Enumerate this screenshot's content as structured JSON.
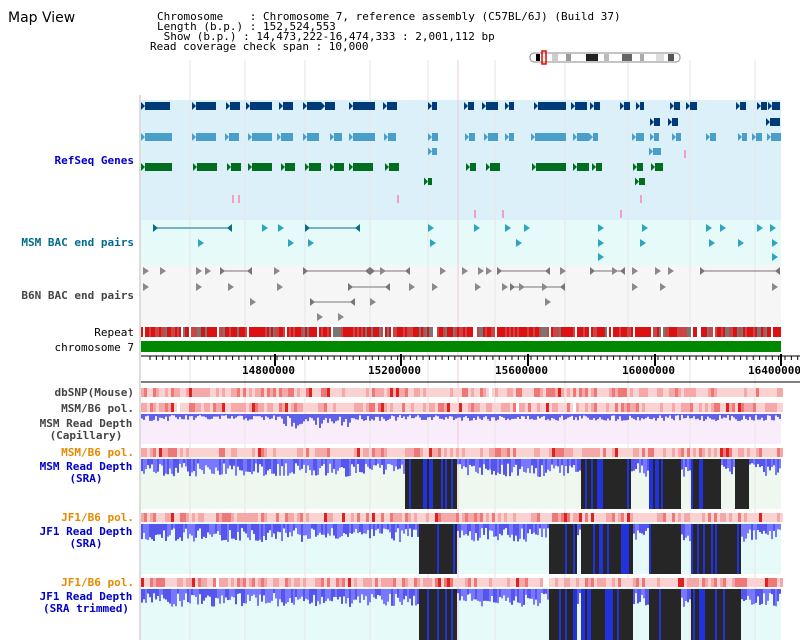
{
  "view": {
    "title": "Map View"
  },
  "info": {
    "line1": "Chromosome    : Chromosome 7, reference assembly (C57BL/6J) (Build 37)",
    "line2": "Length (b.p.) : 152,524,553",
    "line3": " Show (b.p.) : 14,473,222-16,474,333 : 2,001,112 bp",
    "line4": "Read coverage check span : 10,000"
  },
  "tracks": {
    "refseq": "RefSeq Genes",
    "msm_bac": "MSM BAC end pairs",
    "b6n_bac": "B6N BAC end pairs",
    "repeat": "Repeat",
    "chromosome": "chromosome 7",
    "dbsnp": "dbSNP(Mouse)",
    "msm_b6_pol_a": "MSM/B6 pol.",
    "msm_cap_1": "MSM Read Depth",
    "msm_cap_2": "(Capillary)",
    "msm_b6_pol_b": "MSM/B6 pol.",
    "msm_sra_1": "MSM Read Depth",
    "msm_sra_2": "(SRA)",
    "jf1_b6_pol_a": "JF1/B6 pol.",
    "jf1_sra_1": "JF1 Read Depth",
    "jf1_sra_2": "(SRA)",
    "jf1_b6_pol_b": "JF1/B6 pol.",
    "jf1_trim_1": "JF1 Read Depth",
    "jf1_trim_2": "(SRA trimmed)"
  },
  "axis": {
    "ticks": [
      "14800000",
      "15200000",
      "15600000",
      "16000000",
      "16400000"
    ]
  },
  "colors": {
    "refseq_bg": "#dcf0fa",
    "bac_bg": "#e6fafa",
    "b6n_bg": "#f6f6f6",
    "gene_dark": "#003a78",
    "gene_mid": "#4a9fc8",
    "gene_green": "#006e1e",
    "chrom_bar": "#008800",
    "depth_blue": "#5566ee",
    "depth_dark": "#262626"
  }
}
